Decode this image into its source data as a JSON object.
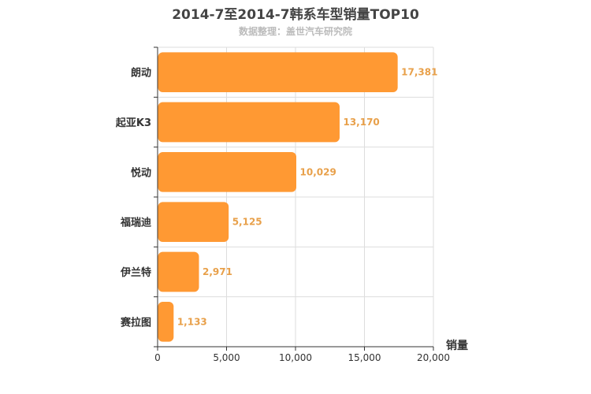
{
  "chart_data": {
    "type": "bar",
    "orientation": "horizontal",
    "title": "2014-7至2014-7韩系车型销量TOP10",
    "subtitle": "数据整理：盖世汽车研究院",
    "categories": [
      "朗动",
      "起亚K3",
      "悦动",
      "福瑞迪",
      "伊兰特",
      "赛拉图"
    ],
    "values": [
      17381,
      13170,
      10029,
      5125,
      2971,
      1133
    ],
    "value_labels": [
      "17,381",
      "13,170",
      "10,029",
      "5,125",
      "2,971",
      "1,133"
    ],
    "xlabel": "销量",
    "xlim": [
      0,
      20000
    ],
    "xticks": [
      0,
      5000,
      10000,
      15000,
      20000
    ],
    "xtick_labels": [
      "0",
      "5,000",
      "10,000",
      "15,000",
      "20,000"
    ],
    "grid": true,
    "bar_color": "#ff9933",
    "label_color": "#e8a04a"
  }
}
